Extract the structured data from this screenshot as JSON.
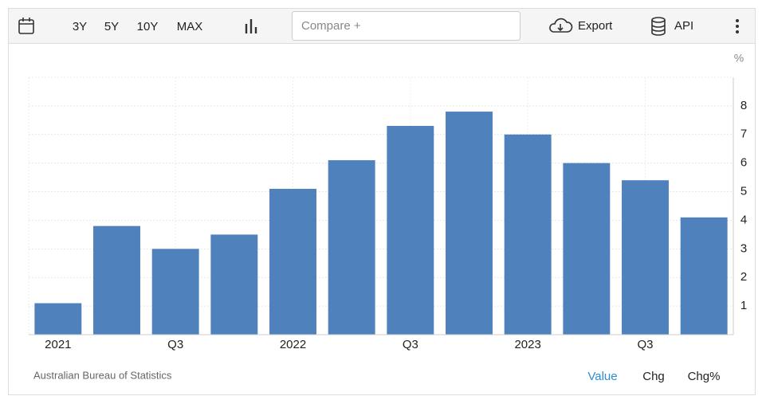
{
  "toolbar": {
    "ranges": [
      "3Y",
      "5Y",
      "10Y",
      "MAX"
    ],
    "compare": "Compare +",
    "export": "Export",
    "api": "API"
  },
  "chart_data": {
    "type": "bar",
    "y_label": "%",
    "categories": [
      "2021",
      null,
      "Q3",
      null,
      "2022",
      null,
      "Q3",
      null,
      "2023",
      null,
      "Q3",
      null
    ],
    "values": [
      1.1,
      3.8,
      3.0,
      3.5,
      5.1,
      6.1,
      7.3,
      7.8,
      7.0,
      6.0,
      5.4,
      4.1
    ],
    "color": "#4f81bd",
    "ylim": [
      0,
      9
    ],
    "yticks": [
      1,
      2,
      3,
      4,
      5,
      6,
      7,
      8
    ],
    "grid": true
  },
  "footer": {
    "source": "Australian Bureau of Statistics",
    "tabs": [
      "Value",
      "Chg",
      "Chg%"
    ]
  }
}
